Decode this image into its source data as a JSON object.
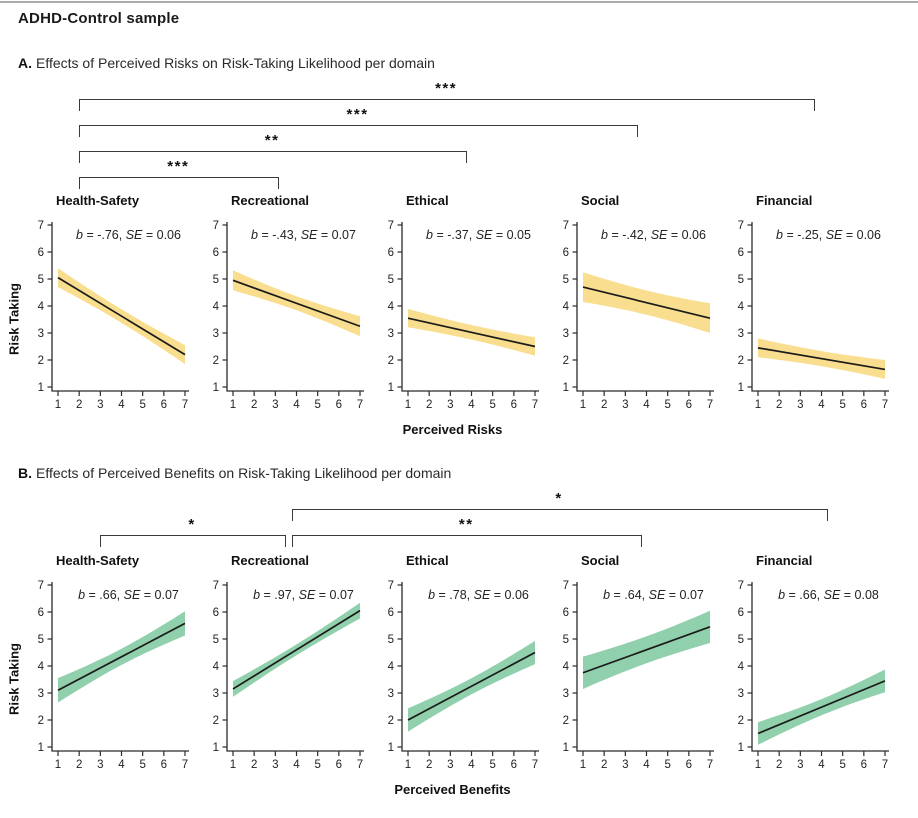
{
  "title": "ADHD-Control sample",
  "chart_data": [
    {
      "type": "line",
      "label": "A.",
      "heading": "Effects of Perceived Risks on Risk-Taking Likelihood per domain",
      "xlabel": "Perceived Risks",
      "ylabel": "Risk Taking",
      "xlim": [
        1,
        7
      ],
      "ylim": [
        1,
        7
      ],
      "x_ticks": [
        1,
        2,
        3,
        4,
        5,
        6,
        7
      ],
      "y_ticks": [
        1,
        2,
        3,
        4,
        5,
        6,
        7
      ],
      "band_color": "#F8DE8E",
      "line_color": "#1b1b1b",
      "stat_symbols": {
        "coef": "b",
        "se": "SE"
      },
      "plots": [
        {
          "domain": "Health-Safety",
          "b": "-.76",
          "se": "0.06",
          "b_value": -0.76,
          "se_value": 0.06,
          "stats_text": "b = -.76, SE = 0.06",
          "x": [
            1,
            7
          ],
          "y": [
            5.05,
            2.2
          ],
          "band_halfwidth_end": 0.35,
          "band_halfwidth_mid": 0.25
        },
        {
          "domain": "Recreational",
          "b": "-.43",
          "se": "0.07",
          "b_value": -0.43,
          "se_value": 0.07,
          "stats_text": "b = -.43, SE = 0.07",
          "x": [
            1,
            7
          ],
          "y": [
            4.95,
            3.25
          ],
          "band_halfwidth_end": 0.37,
          "band_halfwidth_mid": 0.26
        },
        {
          "domain": "Ethical",
          "b": "-.37",
          "se": "0.05",
          "b_value": -0.37,
          "se_value": 0.05,
          "stats_text": "b = -.37, SE = 0.05",
          "x": [
            1,
            7
          ],
          "y": [
            3.55,
            2.5
          ],
          "band_halfwidth_end": 0.34,
          "band_halfwidth_mid": 0.27
        },
        {
          "domain": "Social",
          "b": "-.42",
          "se": "0.06",
          "b_value": -0.42,
          "se_value": 0.06,
          "stats_text": "b = -.42, SE = 0.06",
          "x": [
            1,
            7
          ],
          "y": [
            4.7,
            3.55
          ],
          "band_halfwidth_end": 0.55,
          "band_halfwidth_mid": 0.45
        },
        {
          "domain": "Financial",
          "b": "-.25",
          "se": "0.06",
          "b_value": -0.25,
          "se_value": 0.06,
          "stats_text": "b = -.25, SE = 0.06",
          "x": [
            1,
            7
          ],
          "y": [
            2.45,
            1.65
          ],
          "band_halfwidth_end": 0.35,
          "band_halfwidth_mid": 0.28
        }
      ],
      "significance_brackets": [
        {
          "from_domain": "Health-Safety",
          "to_domain": "Recreational",
          "label": "***",
          "level": 0,
          "from_plot": 0,
          "to_plot": 1,
          "from_x": 2,
          "to_x": 3.1
        },
        {
          "from_domain": "Health-Safety",
          "to_domain": "Ethical",
          "label": "**",
          "level": 1,
          "from_plot": 0,
          "to_plot": 2,
          "from_x": 2,
          "to_x": 3.7
        },
        {
          "from_domain": "Health-Safety",
          "to_domain": "Social",
          "label": "***",
          "level": 2,
          "from_plot": 0,
          "to_plot": 3,
          "from_x": 2,
          "to_x": 3.5
        },
        {
          "from_domain": "Health-Safety",
          "to_domain": "Financial",
          "label": "***",
          "level": 3,
          "from_plot": 0,
          "to_plot": 4,
          "from_x": 2,
          "to_x": 3.6
        }
      ]
    },
    {
      "type": "line",
      "label": "B.",
      "heading": "Effects of Perceived Benefits on Risk-Taking Likelihood per domain",
      "xlabel": "Perceived Benefits",
      "ylabel": "Risk Taking",
      "xlim": [
        1,
        7
      ],
      "ylim": [
        1,
        7
      ],
      "x_ticks": [
        1,
        2,
        3,
        4,
        5,
        6,
        7
      ],
      "y_ticks": [
        1,
        2,
        3,
        4,
        5,
        6,
        7
      ],
      "band_color": "#90D0AC",
      "line_color": "#1b1b1b",
      "stat_symbols": {
        "coef": "b",
        "se": "SE"
      },
      "plots": [
        {
          "domain": "Health-Safety",
          "b": ".66",
          "se": "0.07",
          "b_value": 0.66,
          "se_value": 0.07,
          "stats_text": "b = .66, SE = 0.07",
          "x": [
            1,
            7
          ],
          "y": [
            3.1,
            5.58
          ],
          "band_halfwidth_end": 0.45,
          "band_halfwidth_mid": 0.3
        },
        {
          "domain": "Recreational",
          "b": ".97",
          "se": "0.07",
          "b_value": 0.97,
          "se_value": 0.07,
          "stats_text": "b = .97, SE = 0.07",
          "x": [
            1,
            7
          ],
          "y": [
            3.15,
            6.05
          ],
          "band_halfwidth_end": 0.29,
          "band_halfwidth_mid": 0.2
        },
        {
          "domain": "Ethical",
          "b": ".78",
          "se": "0.06",
          "b_value": 0.78,
          "se_value": 0.06,
          "stats_text": "b = .78, SE = 0.06",
          "x": [
            1,
            7
          ],
          "y": [
            2.0,
            4.5
          ],
          "band_halfwidth_end": 0.43,
          "band_halfwidth_mid": 0.3
        },
        {
          "domain": "Social",
          "b": ".64",
          "se": "0.07",
          "b_value": 0.64,
          "se_value": 0.07,
          "stats_text": "b = .64, SE = 0.07",
          "x": [
            1,
            7
          ],
          "y": [
            3.75,
            5.45
          ],
          "band_halfwidth_end": 0.6,
          "band_halfwidth_mid": 0.5
        },
        {
          "domain": "Financial",
          "b": ".66",
          "se": "0.08",
          "b_value": 0.66,
          "se_value": 0.08,
          "stats_text": "b = .66, SE = 0.08",
          "x": [
            1,
            7
          ],
          "y": [
            1.5,
            3.45
          ],
          "band_halfwidth_end": 0.42,
          "band_halfwidth_mid": 0.3
        }
      ],
      "significance_brackets": [
        {
          "from_domain": "Health-Safety",
          "to_domain": "Recreational",
          "label": "*",
          "level": 0,
          "from_plot": 0,
          "to_plot": 1,
          "from_x": 3,
          "to_x": 3.4
        },
        {
          "from_domain": "Recreational",
          "to_domain": "Social",
          "label": "**",
          "level": 0,
          "from_plot": 1,
          "to_plot": 3,
          "from_x": 3.8,
          "to_x": 3.7
        },
        {
          "from_domain": "Recreational",
          "to_domain": "Financial",
          "label": "*",
          "level": 1,
          "from_plot": 1,
          "to_plot": 4,
          "from_x": 3.8,
          "to_x": 4.2
        }
      ]
    }
  ]
}
